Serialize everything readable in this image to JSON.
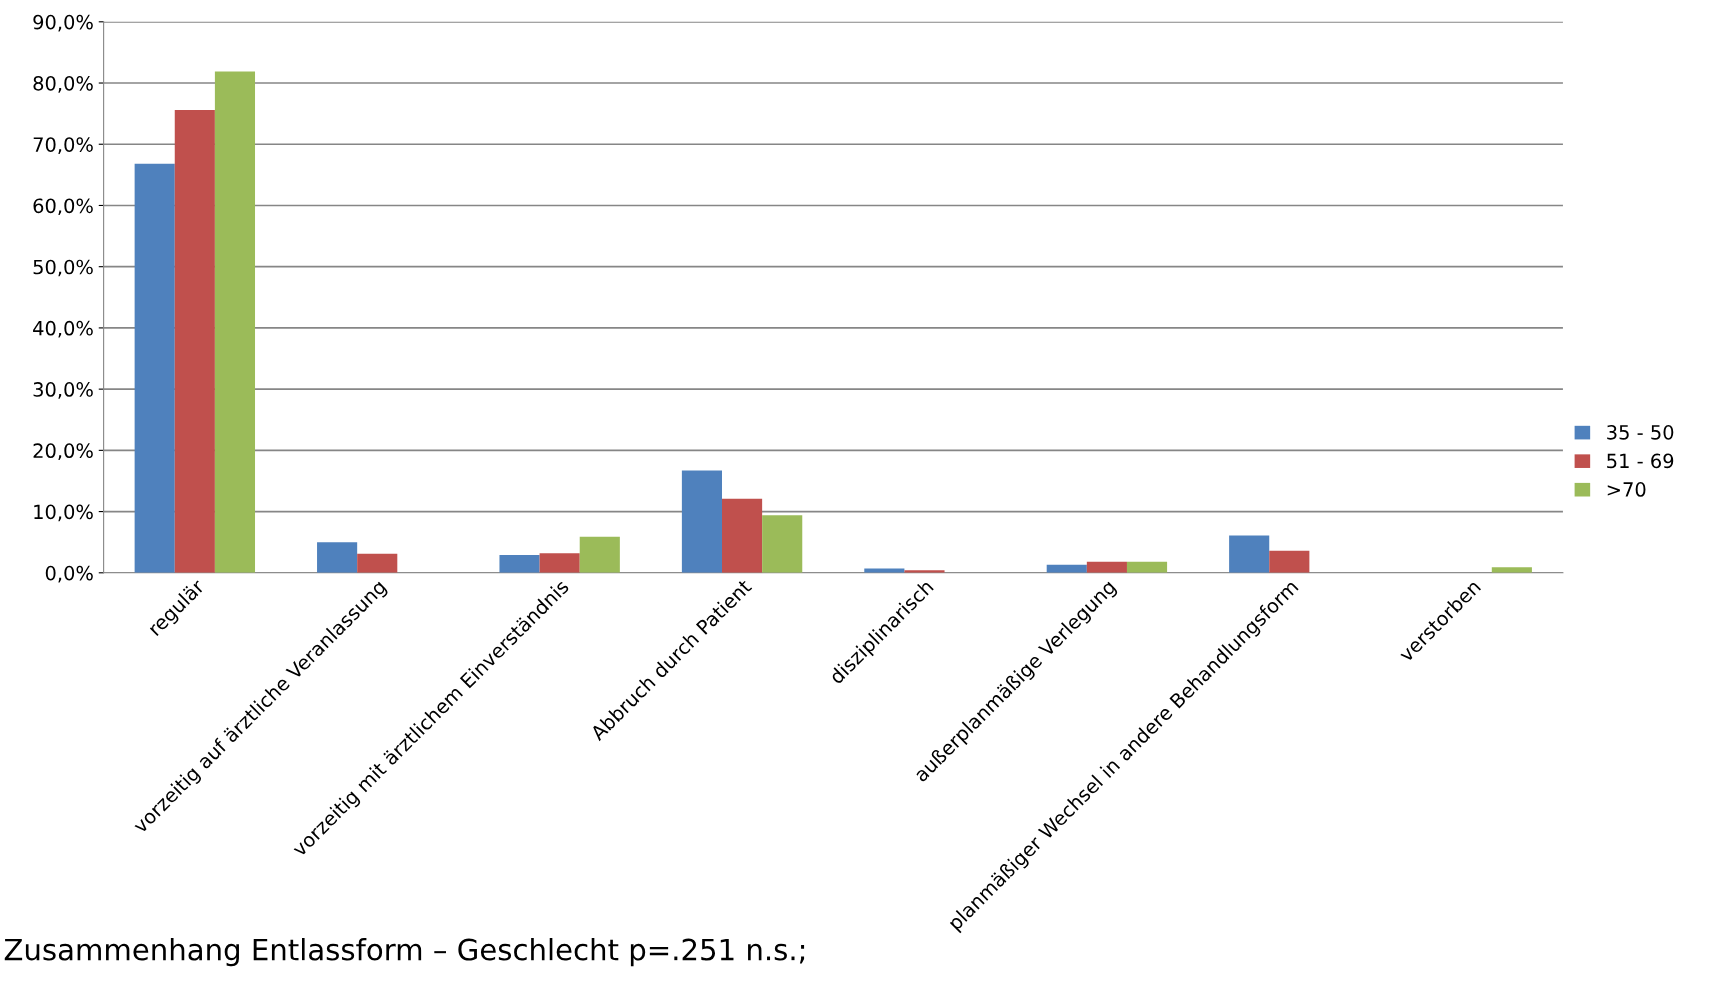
{
  "chart_data": {
    "type": "bar",
    "categories": [
      "regulär",
      "vorzeitig auf ärztliche Veranlassung",
      "vorzeitig mit ärztlichem Einverständnis",
      "Abbruch durch Patient",
      "disziplinarisch",
      "außerplanmäßige Verlegung",
      "planmäßiger Wechsel in andere Behandlungsform",
      "verstorben"
    ],
    "series": [
      {
        "name": "35 - 50",
        "color": "#4f81bd",
        "values": [
          66.8,
          5.0,
          2.9,
          16.7,
          0.7,
          1.3,
          6.1,
          0
        ]
      },
      {
        "name": "51 - 69",
        "color": "#c0504d",
        "values": [
          75.6,
          3.1,
          3.2,
          12.1,
          0.4,
          1.8,
          3.6,
          0
        ]
      },
      {
        "name": ">70",
        "color": "#9bbb59",
        "values": [
          81.9,
          0,
          5.9,
          9.4,
          0,
          1.8,
          0,
          0.9
        ]
      }
    ],
    "ylim": [
      0,
      90
    ],
    "yticks": [
      {
        "value": 0,
        "label": "0,0%"
      },
      {
        "value": 10,
        "label": "10,0%"
      },
      {
        "value": 20,
        "label": "20,0%"
      },
      {
        "value": 30,
        "label": "30,0%"
      },
      {
        "value": 40,
        "label": "40,0%"
      },
      {
        "value": 50,
        "label": "50,0%"
      },
      {
        "value": 60,
        "label": "60,0%"
      },
      {
        "value": 70,
        "label": "70,0%"
      },
      {
        "value": 80,
        "label": "80,0%"
      },
      {
        "value": 90,
        "label": "90,0%"
      }
    ],
    "grid": "y",
    "legend": "right",
    "annotations": [
      "Zusammenhang Entlassform – Geschlecht p=.251 n.s.;"
    ]
  }
}
